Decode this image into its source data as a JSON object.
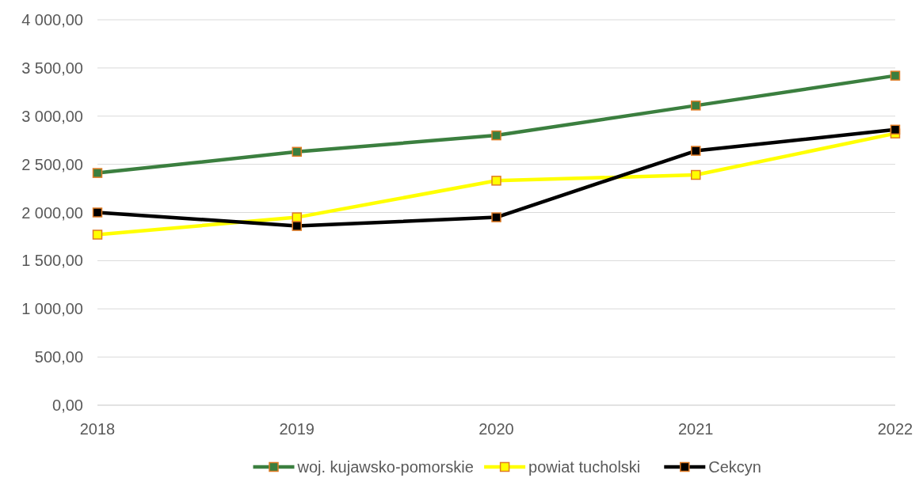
{
  "chart_data": {
    "type": "line",
    "categories": [
      "2018",
      "2019",
      "2020",
      "2021",
      "2022"
    ],
    "series": [
      {
        "name": "woj. kujawsko-pomorskie",
        "color": "#3b7f3f",
        "values": [
          2410,
          2630,
          2800,
          3110,
          3420
        ]
      },
      {
        "name": "powiat tucholski",
        "color": "#ffff00",
        "values": [
          1770,
          1950,
          2330,
          2390,
          2820
        ]
      },
      {
        "name": "Cekcyn",
        "color": "#000000",
        "values": [
          2000,
          1860,
          1950,
          2640,
          2860
        ]
      }
    ],
    "ylim": [
      0,
      4000
    ],
    "yticks": [
      {
        "value": 0,
        "label": "0,00"
      },
      {
        "value": 500,
        "label": "500,00"
      },
      {
        "value": 1000,
        "label": "1 000,00"
      },
      {
        "value": 1500,
        "label": "1 500,00"
      },
      {
        "value": 2000,
        "label": "2 000,00"
      },
      {
        "value": 2500,
        "label": "2 500,00"
      },
      {
        "value": 3000,
        "label": "3 000,00"
      },
      {
        "value": 3500,
        "label": "3 500,00"
      },
      {
        "value": 4000,
        "label": "4 000,00"
      }
    ],
    "grid": "y",
    "legend": "bottom",
    "marker": "square",
    "line_style": "solid"
  }
}
